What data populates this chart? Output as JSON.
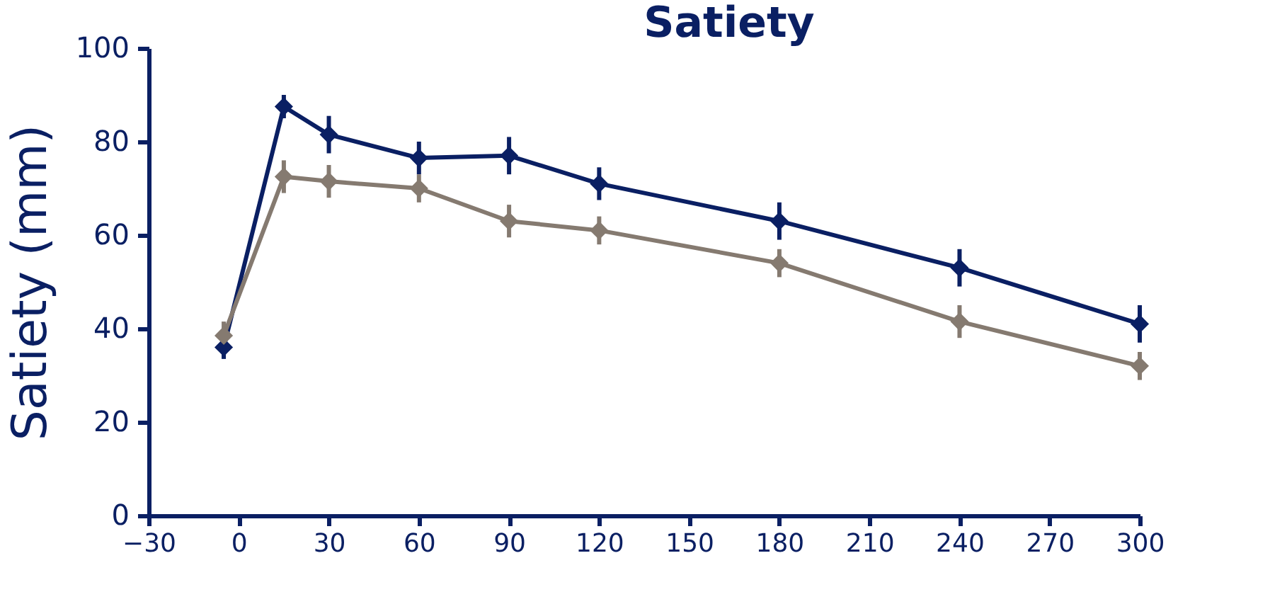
{
  "chart_data": {
    "type": "line",
    "title": "Satiety",
    "ylabel": "Satiety (mm)",
    "x": [
      -5,
      15,
      30,
      60,
      90,
      120,
      180,
      240,
      300
    ],
    "series": [
      {
        "color": "#0a1f63",
        "values": [
          36,
          87.5,
          81.5,
          76.5,
          77,
          71,
          63,
          53,
          41
        ],
        "errors": [
          2.5,
          2.5,
          4,
          3.5,
          4,
          3.5,
          4,
          4,
          4
        ]
      },
      {
        "color": "#857a70",
        "values": [
          38.5,
          72.5,
          71.5,
          70,
          63,
          61,
          54,
          41.5,
          32
        ],
        "errors": [
          3,
          3.5,
          3.5,
          3,
          3.5,
          3,
          3,
          3.5,
          3
        ]
      }
    ],
    "xlim": [
      -30,
      300
    ],
    "xticks": [
      -30,
      0,
      30,
      60,
      90,
      120,
      150,
      180,
      210,
      240,
      270,
      300
    ],
    "ylim": [
      0,
      100
    ],
    "yticks": [
      0,
      20,
      40,
      60,
      80,
      100
    ],
    "grid": false,
    "legend": false,
    "marker": "diamond",
    "line_style": "solid"
  }
}
